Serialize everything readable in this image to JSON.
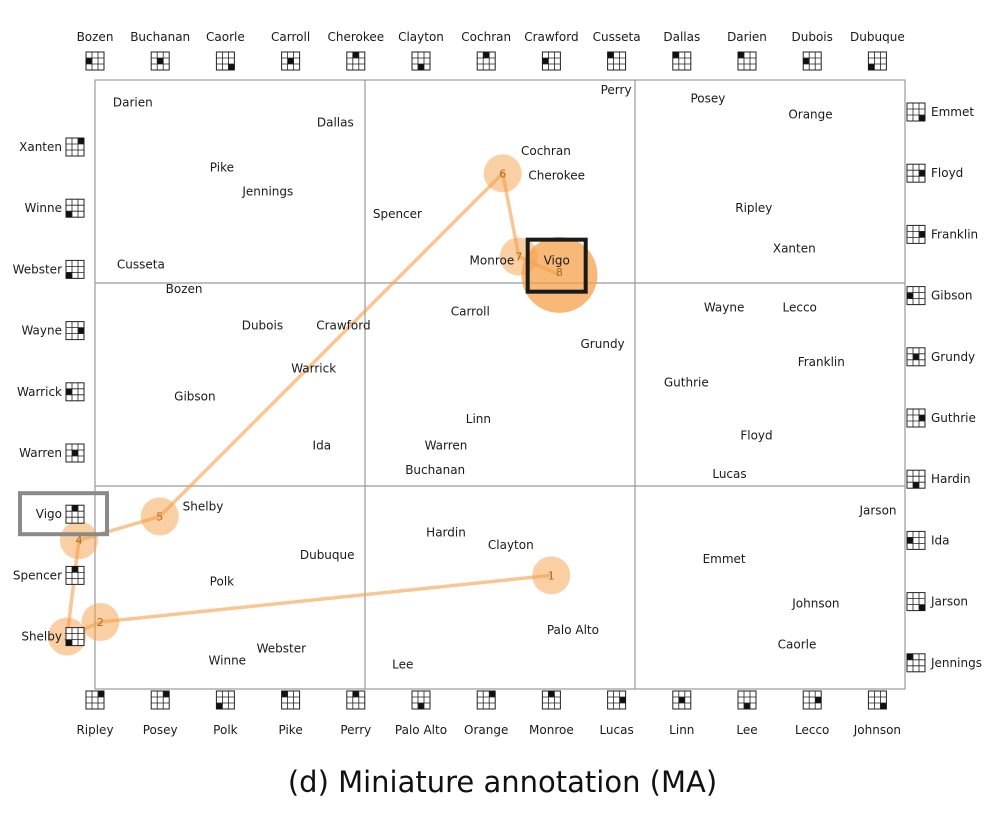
{
  "caption": "(d) Miniature annotation (MA)",
  "colors": {
    "accent": "#f5a04a",
    "grid_line": "#9a9a9a",
    "current_highlight": "#1a1a1a",
    "previous_highlight": "#8a8a8a"
  },
  "grid": {
    "rows": 3,
    "cols": 3
  },
  "cell_labels": [
    {
      "text": "Darien",
      "cell": [
        0,
        0
      ],
      "u": 0.14,
      "v": 0.11
    },
    {
      "text": "Dallas",
      "cell": [
        0,
        0
      ],
      "u": 0.89,
      "v": 0.21
    },
    {
      "text": "Pike",
      "cell": [
        0,
        0
      ],
      "u": 0.47,
      "v": 0.43
    },
    {
      "text": "Jennings",
      "cell": [
        0,
        0
      ],
      "u": 0.64,
      "v": 0.55
    },
    {
      "text": "Cusseta",
      "cell": [
        0,
        0
      ],
      "u": 0.17,
      "v": 0.91
    },
    {
      "text": "Perry",
      "cell": [
        0,
        1
      ],
      "u": 0.93,
      "v": 0.05
    },
    {
      "text": "Cochran",
      "cell": [
        0,
        1
      ],
      "u": 0.67,
      "v": 0.35
    },
    {
      "text": "Cherokee",
      "cell": [
        0,
        1
      ],
      "u": 0.71,
      "v": 0.47
    },
    {
      "text": "Spencer",
      "cell": [
        0,
        1
      ],
      "u": 0.12,
      "v": 0.66
    },
    {
      "text": "Monroe",
      "cell": [
        0,
        1
      ],
      "u": 0.47,
      "v": 0.89
    },
    {
      "text": "Vigo",
      "cell": [
        0,
        1
      ],
      "u": 0.71,
      "v": 0.89
    },
    {
      "text": "Posey",
      "cell": [
        0,
        2
      ],
      "u": 0.27,
      "v": 0.09
    },
    {
      "text": "Orange",
      "cell": [
        0,
        2
      ],
      "u": 0.65,
      "v": 0.17
    },
    {
      "text": "Ripley",
      "cell": [
        0,
        2
      ],
      "u": 0.44,
      "v": 0.63
    },
    {
      "text": "Xanten",
      "cell": [
        0,
        2
      ],
      "u": 0.59,
      "v": 0.83
    },
    {
      "text": "Bozen",
      "cell": [
        1,
        0
      ],
      "u": 0.33,
      "v": 0.03
    },
    {
      "text": "Dubois",
      "cell": [
        1,
        0
      ],
      "u": 0.62,
      "v": 0.21
    },
    {
      "text": "Crawford",
      "cell": [
        1,
        0
      ],
      "u": 0.92,
      "v": 0.21
    },
    {
      "text": "Warrick",
      "cell": [
        1,
        0
      ],
      "u": 0.81,
      "v": 0.42
    },
    {
      "text": "Gibson",
      "cell": [
        1,
        0
      ],
      "u": 0.37,
      "v": 0.56
    },
    {
      "text": "Ida",
      "cell": [
        1,
        0
      ],
      "u": 0.84,
      "v": 0.8
    },
    {
      "text": "Carroll",
      "cell": [
        1,
        1
      ],
      "u": 0.39,
      "v": 0.14
    },
    {
      "text": "Grundy",
      "cell": [
        1,
        1
      ],
      "u": 0.88,
      "v": 0.3
    },
    {
      "text": "Linn",
      "cell": [
        1,
        1
      ],
      "u": 0.42,
      "v": 0.67
    },
    {
      "text": "Warren",
      "cell": [
        1,
        1
      ],
      "u": 0.3,
      "v": 0.8
    },
    {
      "text": "Buchanan",
      "cell": [
        1,
        1
      ],
      "u": 0.26,
      "v": 0.92
    },
    {
      "text": "Wayne",
      "cell": [
        1,
        2
      ],
      "u": 0.33,
      "v": 0.12
    },
    {
      "text": "Lecco",
      "cell": [
        1,
        2
      ],
      "u": 0.61,
      "v": 0.12
    },
    {
      "text": "Franklin",
      "cell": [
        1,
        2
      ],
      "u": 0.69,
      "v": 0.39
    },
    {
      "text": "Guthrie",
      "cell": [
        1,
        2
      ],
      "u": 0.19,
      "v": 0.49
    },
    {
      "text": "Floyd",
      "cell": [
        1,
        2
      ],
      "u": 0.45,
      "v": 0.75
    },
    {
      "text": "Lucas",
      "cell": [
        1,
        2
      ],
      "u": 0.35,
      "v": 0.94
    },
    {
      "text": "Shelby",
      "cell": [
        2,
        0
      ],
      "u": 0.4,
      "v": 0.1
    },
    {
      "text": "Dubuque",
      "cell": [
        2,
        0
      ],
      "u": 0.86,
      "v": 0.34
    },
    {
      "text": "Polk",
      "cell": [
        2,
        0
      ],
      "u": 0.47,
      "v": 0.47
    },
    {
      "text": "Webster",
      "cell": [
        2,
        0
      ],
      "u": 0.69,
      "v": 0.8
    },
    {
      "text": "Winne",
      "cell": [
        2,
        0
      ],
      "u": 0.49,
      "v": 0.86
    },
    {
      "text": "Hardin",
      "cell": [
        2,
        1
      ],
      "u": 0.3,
      "v": 0.23
    },
    {
      "text": "Clayton",
      "cell": [
        2,
        1
      ],
      "u": 0.54,
      "v": 0.29
    },
    {
      "text": "Palo Alto",
      "cell": [
        2,
        1
      ],
      "u": 0.77,
      "v": 0.71
    },
    {
      "text": "Lee",
      "cell": [
        2,
        1
      ],
      "u": 0.14,
      "v": 0.88
    },
    {
      "text": "Jarson",
      "cell": [
        2,
        2
      ],
      "u": 0.9,
      "v": 0.12
    },
    {
      "text": "Emmet",
      "cell": [
        2,
        2
      ],
      "u": 0.33,
      "v": 0.36
    },
    {
      "text": "Johnson",
      "cell": [
        2,
        2
      ],
      "u": 0.67,
      "v": 0.58
    },
    {
      "text": "Caorle",
      "cell": [
        2,
        2
      ],
      "u": 0.6,
      "v": 0.78
    }
  ],
  "trajectory": [
    {
      "n": "1",
      "cell": [
        2,
        1
      ],
      "u": 0.69,
      "v": 0.44
    },
    {
      "n": "2",
      "cell": [
        2,
        0
      ],
      "u": 0.02,
      "v": 0.67
    },
    {
      "n": "3",
      "border": "left",
      "index": 8,
      "dx": -8
    },
    {
      "n": "4",
      "border": "left",
      "index": 6,
      "dx": 4,
      "dy": 26
    },
    {
      "n": "5",
      "cell": [
        2,
        0
      ],
      "u": 0.24,
      "v": 0.15
    },
    {
      "n": "6",
      "cell": [
        0,
        1
      ],
      "u": 0.51,
      "v": 0.46
    },
    {
      "n": "7",
      "cell": [
        0,
        1
      ],
      "u": 0.57,
      "v": 0.87
    },
    {
      "n": "8",
      "cell": [
        0,
        1
      ],
      "u": 0.72,
      "v": 0.96
    }
  ],
  "current_target": "Vigo",
  "current_target_number": "8",
  "miniatures": {
    "top": [
      {
        "label": "Bozen",
        "cell": [
          1,
          0
        ]
      },
      {
        "label": "Buchanan",
        "cell": [
          1,
          1
        ]
      },
      {
        "label": "Caorle",
        "cell": [
          2,
          2
        ]
      },
      {
        "label": "Carroll",
        "cell": [
          1,
          1
        ]
      },
      {
        "label": "Cherokee",
        "cell": [
          0,
          1
        ]
      },
      {
        "label": "Clayton",
        "cell": [
          2,
          1
        ]
      },
      {
        "label": "Cochran",
        "cell": [
          0,
          1
        ]
      },
      {
        "label": "Crawford",
        "cell": [
          1,
          0
        ]
      },
      {
        "label": "Cusseta",
        "cell": [
          0,
          0
        ]
      },
      {
        "label": "Dallas",
        "cell": [
          0,
          0
        ]
      },
      {
        "label": "Darien",
        "cell": [
          0,
          0
        ]
      },
      {
        "label": "Dubois",
        "cell": [
          1,
          0
        ]
      },
      {
        "label": "Dubuque",
        "cell": [
          2,
          0
        ]
      }
    ],
    "bottom": [
      {
        "label": "Ripley",
        "cell": [
          0,
          2
        ]
      },
      {
        "label": "Posey",
        "cell": [
          0,
          2
        ]
      },
      {
        "label": "Polk",
        "cell": [
          2,
          0
        ]
      },
      {
        "label": "Pike",
        "cell": [
          0,
          0
        ]
      },
      {
        "label": "Perry",
        "cell": [
          0,
          1
        ]
      },
      {
        "label": "Palo Alto",
        "cell": [
          2,
          1
        ]
      },
      {
        "label": "Orange",
        "cell": [
          0,
          2
        ]
      },
      {
        "label": "Monroe",
        "cell": [
          0,
          1
        ]
      },
      {
        "label": "Lucas",
        "cell": [
          1,
          2
        ]
      },
      {
        "label": "Linn",
        "cell": [
          1,
          1
        ]
      },
      {
        "label": "Lee",
        "cell": [
          2,
          1
        ]
      },
      {
        "label": "Lecco",
        "cell": [
          1,
          2
        ]
      },
      {
        "label": "Johnson",
        "cell": [
          2,
          2
        ]
      }
    ],
    "left": [
      {
        "label": "Xanten",
        "cell": [
          0,
          2
        ]
      },
      {
        "label": "Winne",
        "cell": [
          2,
          0
        ]
      },
      {
        "label": "Webster",
        "cell": [
          2,
          0
        ]
      },
      {
        "label": "Wayne",
        "cell": [
          1,
          2
        ]
      },
      {
        "label": "Warrick",
        "cell": [
          1,
          0
        ]
      },
      {
        "label": "Warren",
        "cell": [
          1,
          1
        ]
      },
      {
        "label": "Vigo",
        "cell": [
          0,
          1
        ]
      },
      {
        "label": "Spencer",
        "cell": [
          0,
          1
        ]
      },
      {
        "label": "Shelby",
        "cell": [
          2,
          0
        ]
      }
    ],
    "right": [
      {
        "label": "Emmet",
        "cell": [
          2,
          2
        ]
      },
      {
        "label": "Floyd",
        "cell": [
          1,
          2
        ]
      },
      {
        "label": "Franklin",
        "cell": [
          1,
          2
        ]
      },
      {
        "label": "Gibson",
        "cell": [
          1,
          0
        ]
      },
      {
        "label": "Grundy",
        "cell": [
          1,
          1
        ]
      },
      {
        "label": "Guthrie",
        "cell": [
          1,
          2
        ]
      },
      {
        "label": "Hardin",
        "cell": [
          2,
          1
        ]
      },
      {
        "label": "Ida",
        "cell": [
          1,
          0
        ]
      },
      {
        "label": "Jarson",
        "cell": [
          2,
          2
        ]
      },
      {
        "label": "Jennings",
        "cell": [
          0,
          0
        ]
      }
    ]
  },
  "previous_highlight_miniature": {
    "side": "left",
    "index": 6
  }
}
